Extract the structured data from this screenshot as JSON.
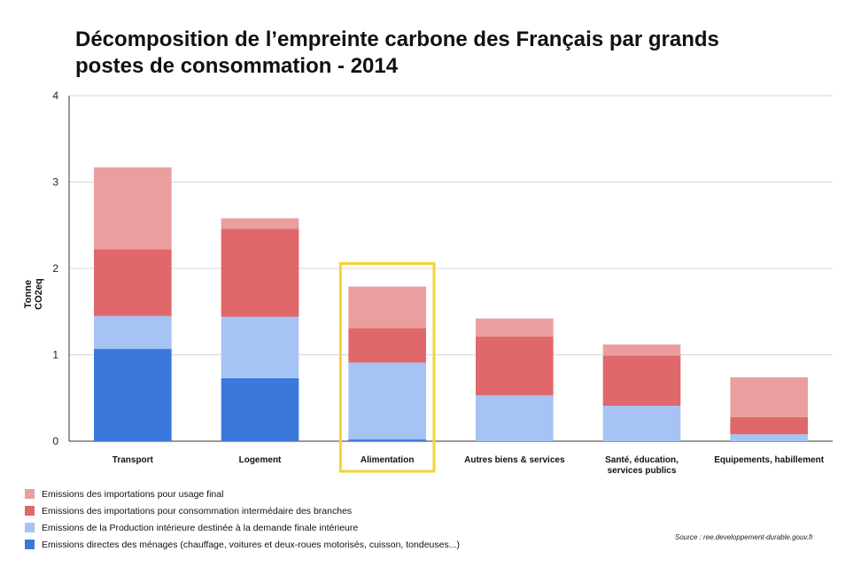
{
  "title": "Décomposition de l’empreinte carbone des Français par grands postes de consommation - 2014",
  "source": "Source : ree.developpement-durable.gouv.fr",
  "chart_data": {
    "type": "bar",
    "stacked": true,
    "title": "Décomposition de l’empreinte carbone des Français par grands postes de consommation - 2014",
    "ylabel": "Tonne CO2eq",
    "xlabel": "",
    "ylim": [
      0,
      4
    ],
    "yticks": [
      0,
      1,
      2,
      3,
      4
    ],
    "grid": true,
    "legend_position": "bottom-left",
    "highlighted_category": "Alimentation",
    "highlight_color": "#f5d332",
    "categories": [
      "Transport",
      "Logement",
      "Alimentation",
      "Autres biens & services",
      "Santé, éducation, services publics",
      "Equipements, habillement"
    ],
    "series": [
      {
        "name": "Emissions directes des ménages (chauffage, voitures et deux-roues motorisés, cuisson, tondeuses...)",
        "color": "#3b78dc",
        "values": [
          1.07,
          0.73,
          0.02,
          0,
          0,
          0
        ]
      },
      {
        "name": "Emissions de la Production intérieure destinée à la demande finale intérieure",
        "color": "#a6c3f4",
        "values": [
          0.38,
          0.71,
          0.89,
          0.53,
          0.41,
          0.08
        ]
      },
      {
        "name": "Emissions des importations pour consommation intermédaire des branches",
        "color": "#e0676a",
        "values": [
          0.77,
          1.02,
          0.4,
          0.68,
          0.58,
          0.2
        ]
      },
      {
        "name": "Emissions des importations pour usage final",
        "color": "#eb9e9e",
        "values": [
          0.95,
          0.12,
          0.48,
          0.21,
          0.13,
          0.46
        ]
      }
    ]
  }
}
